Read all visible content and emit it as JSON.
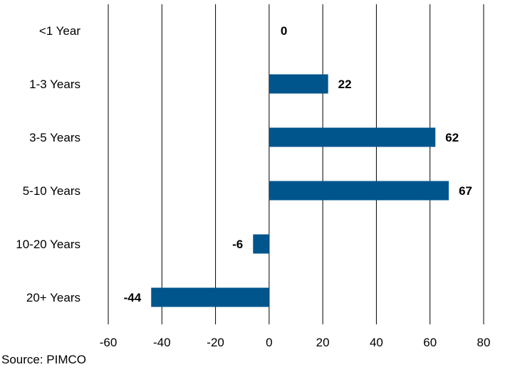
{
  "chart_data": {
    "type": "bar",
    "orientation": "horizontal",
    "categories": [
      "<1 Year",
      "1-3 Years",
      "3-5 Years",
      "5-10 Years",
      "10-20 Years",
      "20+ Years"
    ],
    "values": [
      0,
      22,
      62,
      67,
      -6,
      -44
    ],
    "data_labels": [
      "0",
      "22",
      "62",
      "67",
      "-6",
      "-44"
    ],
    "xlim": [
      -60,
      80
    ],
    "x_ticks": [
      -60,
      -40,
      -20,
      0,
      20,
      40,
      60,
      80
    ],
    "x_tick_labels": [
      "-60",
      "-40",
      "-20",
      "0",
      "20",
      "40",
      "60",
      "80"
    ],
    "grid": "vertical",
    "legend": "none",
    "bar_color": "#00558c"
  },
  "source_text": "Source: PIMCO"
}
